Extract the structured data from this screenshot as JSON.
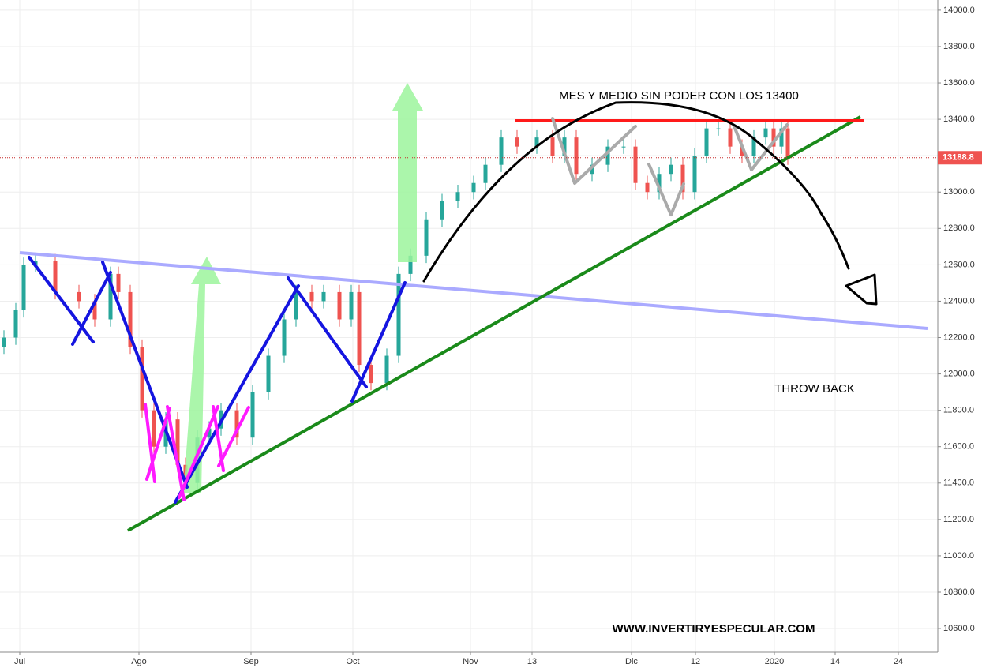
{
  "chart_data": {
    "type": "candlestick",
    "x": [
      0.5,
      2,
      3,
      4.5,
      7,
      10,
      12,
      14,
      15,
      16.5,
      18,
      19.5,
      21,
      22.5,
      23.5,
      25,
      26.5,
      28,
      30,
      32,
      34,
      36,
      37.5,
      39.5,
      41,
      43,
      44.5,
      45.5,
      47,
      49,
      50.5,
      52,
      54,
      56,
      58,
      60,
      61.5,
      63.5,
      65.5,
      68,
      70,
      71.5,
      73,
      75,
      77,
      79,
      80.5,
      82,
      83.5,
      85,
      86.5,
      88,
      89.5,
      91,
      92.5,
      94,
      95.5,
      97,
      98,
      99,
      99.8
    ],
    "open": [
      12150,
      12200,
      12350,
      12600,
      12620,
      12450,
      12400,
      12300,
      12550,
      12450,
      12150,
      11800,
      11600,
      11750,
      11500,
      11400,
      11650,
      11700,
      11800,
      11650,
      11900,
      12100,
      12300,
      12450,
      12400,
      12450,
      12300,
      12450,
      12050,
      11950,
      12100,
      12550,
      12650,
      12850,
      12950,
      13000,
      13050,
      13150,
      13300,
      13250,
      13300,
      13200,
      13300,
      13100,
      13150,
      13250,
      13250,
      13050,
      13000,
      13100,
      13150,
      13000,
      13200,
      13350,
      13350,
      13250,
      13200,
      13300,
      13350,
      13250,
      13350
    ],
    "high": [
      12240,
      12390,
      12640,
      12660,
      12660,
      12490,
      12440,
      12590,
      12590,
      12490,
      12190,
      11840,
      11790,
      11790,
      11540,
      11690,
      11740,
      11840,
      11840,
      11940,
      12140,
      12340,
      12490,
      12490,
      12490,
      12490,
      12490,
      12490,
      12090,
      12140,
      12590,
      12690,
      12890,
      12990,
      13040,
      13090,
      13190,
      13340,
      13340,
      13340,
      13340,
      13340,
      13340,
      13190,
      13290,
      13290,
      13290,
      13090,
      13140,
      13190,
      13190,
      13240,
      13390,
      13390,
      13390,
      13290,
      13340,
      13390,
      13390,
      13390,
      13390
    ],
    "low": [
      12110,
      12160,
      12310,
      12560,
      12410,
      12360,
      12260,
      12260,
      12410,
      12110,
      11760,
      11560,
      11560,
      11460,
      11360,
      11360,
      11610,
      11660,
      11610,
      11610,
      11860,
      12060,
      12260,
      12360,
      12360,
      12260,
      12260,
      12010,
      11910,
      11910,
      12060,
      12510,
      12610,
      12810,
      12910,
      12960,
      13010,
      13110,
      13210,
      13210,
      13160,
      13160,
      13060,
      13060,
      13110,
      13210,
      13010,
      12960,
      12960,
      13060,
      12960,
      12960,
      13160,
      13310,
      13210,
      13160,
      13160,
      13260,
      13210,
      13210,
      13150
    ],
    "close": [
      12200,
      12350,
      12600,
      12620,
      12450,
      12400,
      12300,
      12550,
      12450,
      12150,
      11800,
      11600,
      11750,
      11500,
      11400,
      11650,
      11700,
      11800,
      11650,
      11900,
      12100,
      12300,
      12450,
      12400,
      12450,
      12300,
      12450,
      12050,
      11950,
      12100,
      12550,
      12650,
      12850,
      12950,
      13000,
      13050,
      13150,
      13300,
      13250,
      13300,
      13200,
      13300,
      13100,
      13150,
      13250,
      13250,
      13050,
      13000,
      13100,
      13150,
      13000,
      13200,
      13350,
      13350,
      13250,
      13200,
      13300,
      13350,
      13250,
      13350,
      13190
    ],
    "up_color": "#26a69a",
    "down_color": "#ef5350",
    "xlim": [
      0,
      118.8
    ],
    "ylim": [
      10470,
      14056
    ],
    "xticks": [
      {
        "value": 2.5,
        "label": "Jul"
      },
      {
        "value": 17.6,
        "label": "Ago"
      },
      {
        "value": 31.8,
        "label": "Sep"
      },
      {
        "value": 44.7,
        "label": "Oct"
      },
      {
        "value": 59.6,
        "label": "Nov"
      },
      {
        "value": 67.4,
        "label": "13"
      },
      {
        "value": 80,
        "label": "Dic"
      },
      {
        "value": 88.1,
        "label": "12"
      },
      {
        "value": 98.1,
        "label": "2020"
      },
      {
        "value": 105.8,
        "label": "14"
      },
      {
        "value": 113.8,
        "label": "24"
      }
    ],
    "yticks": [
      {
        "value": 10600,
        "label": "10600.0"
      },
      {
        "value": 10800,
        "label": "10800.0"
      },
      {
        "value": 11000,
        "label": "11000.0"
      },
      {
        "value": 11200,
        "label": "11200.0"
      },
      {
        "value": 11400,
        "label": "11400.0"
      },
      {
        "value": 11600,
        "label": "11600.0"
      },
      {
        "value": 11800,
        "label": "11800.0"
      },
      {
        "value": 12000,
        "label": "12000.0"
      },
      {
        "value": 12200,
        "label": "12200.0"
      },
      {
        "value": 12400,
        "label": "12400.0"
      },
      {
        "value": 12600,
        "label": "12600.0"
      },
      {
        "value": 12800,
        "label": "12800.0"
      },
      {
        "value": 13000,
        "label": "13000.0"
      },
      {
        "value": 13200,
        "label": "13200.0"
      },
      {
        "value": 13400,
        "label": "13400.0"
      },
      {
        "value": 13600,
        "label": "13600.0"
      },
      {
        "value": 13800,
        "label": "13800.0"
      },
      {
        "value": 14000,
        "label": "14000.0"
      }
    ],
    "grid": true,
    "last_price": 13188.8,
    "annotations": [
      "MES Y MEDIO SIN PODER CON LOS 13400",
      "THROW BACK",
      "WWW.INVERTIRYESPECULAR.COM"
    ]
  }
}
